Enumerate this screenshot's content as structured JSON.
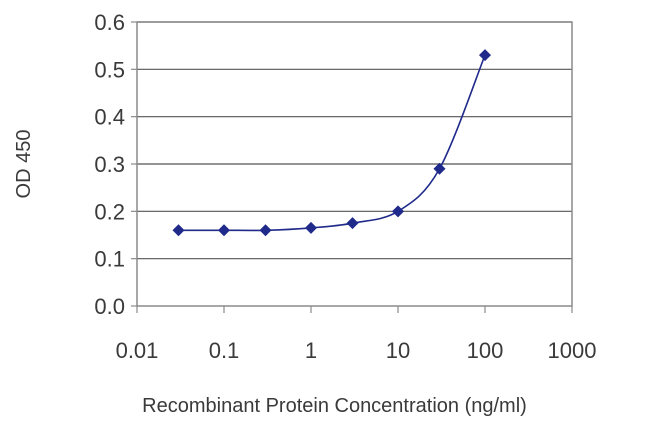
{
  "chart_data": {
    "type": "line",
    "x_scale": "log",
    "xlabel": "Recombinant Protein Concentration (ng/ml)",
    "ylabel": "OD 450",
    "xlim": [
      0.01,
      1000
    ],
    "ylim": [
      0,
      0.6
    ],
    "x_ticks": [
      0.01,
      0.1,
      1,
      10,
      100,
      1000
    ],
    "x_tick_labels": [
      "0.01",
      "0.1",
      "1",
      "10",
      "100",
      "1000"
    ],
    "y_ticks": [
      0,
      0.1,
      0.2,
      0.3,
      0.4,
      0.5,
      0.6
    ],
    "y_tick_labels": [
      "0.0",
      "0.1",
      "0.2",
      "0.3",
      "0.4",
      "0.5",
      "0.6"
    ],
    "grid": "horizontal",
    "series": [
      {
        "x": [
          0.03,
          0.1,
          0.3,
          1,
          3,
          10,
          30,
          100
        ],
        "y": [
          0.16,
          0.16,
          0.16,
          0.165,
          0.175,
          0.2,
          0.29,
          0.53
        ],
        "color": "#1f2a8a",
        "marker": "diamond"
      }
    ]
  }
}
